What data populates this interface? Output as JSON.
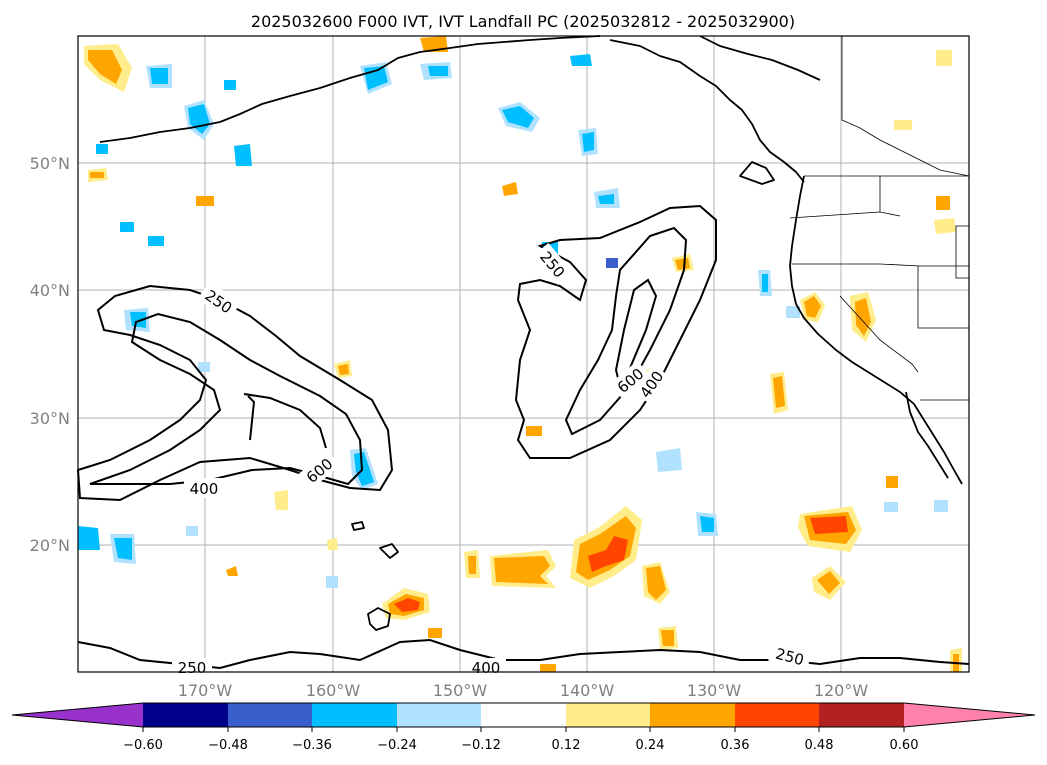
{
  "title": "2025032600 F000 IVT, IVT Landfall PC (2025032812 - 2025032900)",
  "lat_labels": [
    "50°N",
    "40°N",
    "30°N",
    "20°N"
  ],
  "lon_labels": [
    "170°W",
    "160°W",
    "150°W",
    "140°W",
    "130°W",
    "120°W"
  ],
  "colorbar": {
    "ticks": [
      "−0.60",
      "−0.48",
      "−0.36",
      "−0.24",
      "−0.12",
      "0.12",
      "0.24",
      "0.36",
      "0.48",
      "0.60"
    ],
    "colors": [
      "#9932cc",
      "#00008b",
      "#3a5fcd",
      "#00bfff",
      "#b0e2ff",
      "#ffffff",
      "#ffec8b",
      "#ffa500",
      "#ff4500",
      "#b22222",
      "#ff82ab"
    ]
  },
  "contour_labels": [
    "250",
    "400",
    "600",
    "250",
    "600",
    "400",
    "250",
    "400",
    "250"
  ],
  "colors": {
    "pos_light": "#ffec8b",
    "pos_mid": "#ffa500",
    "pos_strong": "#ff4500",
    "neg_light": "#b0e2ff",
    "neg_mid": "#00bfff",
    "neg_strong": "#3a5fcd"
  }
}
